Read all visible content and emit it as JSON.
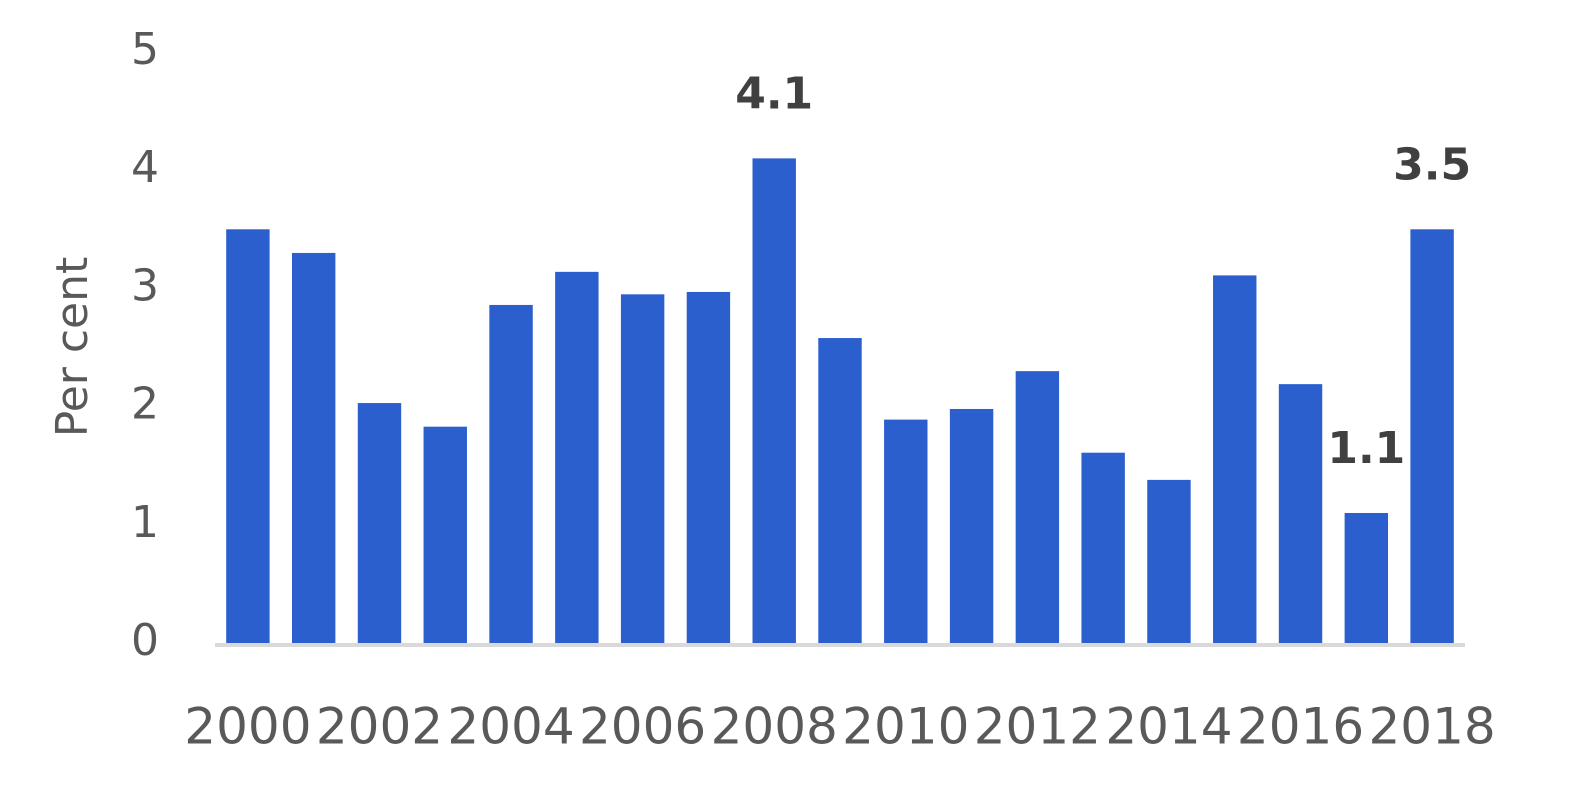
{
  "chart_data": {
    "type": "bar",
    "y_label": "Per cent",
    "categories": [
      "2000",
      null,
      "2002",
      null,
      "2004",
      null,
      "2006",
      null,
      "2008",
      null,
      "2010",
      null,
      "2012",
      null,
      "2014",
      null,
      "2016",
      null,
      "2018"
    ],
    "values": [
      3.5,
      3.3,
      2.03,
      1.83,
      2.86,
      3.14,
      2.95,
      2.97,
      4.1,
      2.58,
      1.89,
      1.98,
      2.3,
      1.61,
      1.38,
      3.11,
      2.19,
      1.1,
      3.5
    ],
    "value_labels": [
      null,
      null,
      null,
      null,
      null,
      null,
      null,
      null,
      "4.1",
      null,
      null,
      null,
      null,
      null,
      null,
      null,
      null,
      "1.1",
      "3.5"
    ],
    "color": "#2b5fce",
    "ylim": [
      0,
      5
    ],
    "yticks": [
      0,
      1,
      2,
      3,
      4,
      5
    ],
    "grid": false
  }
}
